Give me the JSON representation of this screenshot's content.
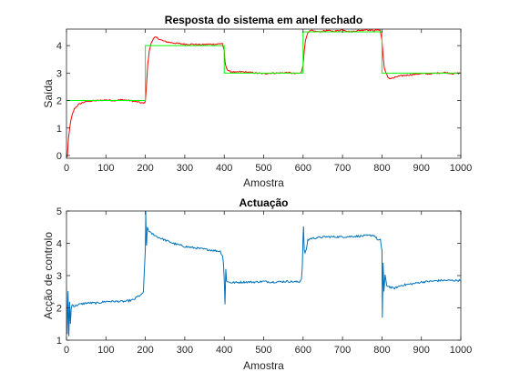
{
  "chart_data": [
    {
      "type": "line",
      "title": "Resposta do sistema em anel fechado",
      "xlabel": "Amostra",
      "ylabel": "Saída",
      "xlim": [
        0,
        1000
      ],
      "ylim": [
        -0.1,
        4.6
      ],
      "xticks": [
        "0",
        "100",
        "200",
        "300",
        "400",
        "500",
        "600",
        "700",
        "800",
        "900",
        "1000"
      ],
      "yticks": [
        "0",
        "1",
        "2",
        "3",
        "4"
      ],
      "grid": false,
      "series": [
        {
          "color": "#ff0000",
          "x": [
            0,
            2,
            5,
            10,
            15,
            20,
            30,
            40,
            50,
            60,
            80,
            100,
            120,
            140,
            160,
            180,
            195,
            200,
            203,
            206,
            210,
            215,
            220,
            225,
            230,
            240,
            250,
            260,
            280,
            300,
            320,
            340,
            360,
            380,
            395,
            400,
            402,
            405,
            410,
            415,
            420,
            430,
            440,
            460,
            480,
            500,
            520,
            540,
            560,
            580,
            595,
            600,
            603,
            606,
            610,
            615,
            620,
            630,
            640,
            660,
            680,
            700,
            720,
            740,
            760,
            780,
            795,
            800,
            803,
            806,
            810,
            815,
            820,
            830,
            840,
            860,
            880,
            900,
            920,
            940,
            960,
            980,
            1000
          ],
          "y": [
            0.0,
            -0.05,
            0.6,
            1.2,
            1.5,
            1.7,
            1.85,
            1.92,
            1.96,
            1.98,
            2.0,
            2.02,
            2.0,
            2.03,
            2.0,
            1.95,
            1.9,
            1.95,
            2.6,
            3.3,
            3.8,
            4.1,
            4.25,
            4.3,
            4.28,
            4.2,
            4.15,
            4.12,
            4.08,
            4.05,
            4.05,
            4.03,
            4.05,
            4.05,
            4.08,
            3.8,
            3.4,
            3.2,
            3.1,
            3.05,
            3.05,
            3.02,
            3.05,
            3.03,
            3.0,
            2.98,
            3.0,
            3.0,
            3.02,
            2.98,
            3.0,
            3.3,
            3.8,
            4.2,
            4.4,
            4.5,
            4.55,
            4.52,
            4.5,
            4.55,
            4.52,
            4.58,
            4.5,
            4.55,
            4.58,
            4.55,
            4.58,
            4.2,
            3.6,
            3.2,
            3.0,
            2.85,
            2.8,
            2.82,
            2.88,
            2.92,
            2.95,
            2.98,
            2.97,
            3.0,
            3.02,
            2.98,
            3.0
          ],
          "noise": 0.025
        },
        {
          "color": "#00ff00",
          "x": [
            0,
            200,
            200,
            400,
            400,
            600,
            600,
            800,
            800,
            1000
          ],
          "y": [
            2,
            2,
            4,
            4,
            3,
            3,
            4.5,
            4.5,
            3,
            3
          ],
          "noise": 0
        }
      ]
    },
    {
      "type": "line",
      "title": "Actuação",
      "xlabel": "Amostra",
      "ylabel": "Acção de controlo",
      "xlim": [
        0,
        1000
      ],
      "ylim": [
        1,
        5
      ],
      "xticks": [
        "0",
        "100",
        "200",
        "300",
        "400",
        "500",
        "600",
        "700",
        "800",
        "900",
        "1000"
      ],
      "yticks": [
        "1",
        "2",
        "3",
        "4",
        "5"
      ],
      "grid": false,
      "series": [
        {
          "color": "#0072bd",
          "x": [
            0,
            2,
            4,
            6,
            8,
            10,
            12,
            15,
            20,
            30,
            50,
            80,
            100,
            150,
            170,
            180,
            190,
            195,
            200,
            201,
            202,
            203,
            205,
            208,
            212,
            215,
            220,
            230,
            250,
            270,
            300,
            330,
            360,
            390,
            396,
            398,
            400,
            402,
            404,
            406,
            410,
            420,
            450,
            480,
            500,
            520,
            560,
            590,
            596,
            598,
            600,
            601,
            603,
            605,
            608,
            612,
            620,
            640,
            660,
            700,
            740,
            780,
            790,
            796,
            798,
            800,
            801,
            803,
            805,
            808,
            812,
            820,
            830,
            850,
            880,
            900,
            950,
            1000
          ],
          "y": [
            2.8,
            1.2,
            2.5,
            1.1,
            2.2,
            1.5,
            2.0,
            2.1,
            2.05,
            2.1,
            2.15,
            2.15,
            2.2,
            2.2,
            2.25,
            2.35,
            2.4,
            2.5,
            3.8,
            5.0,
            4.2,
            3.9,
            4.5,
            4.4,
            4.35,
            4.3,
            4.28,
            4.2,
            4.1,
            4.0,
            3.9,
            3.85,
            3.8,
            3.75,
            3.6,
            3.4,
            2.9,
            2.1,
            3.2,
            2.85,
            2.8,
            2.78,
            2.8,
            2.8,
            2.82,
            2.8,
            2.82,
            2.8,
            2.9,
            3.3,
            4.2,
            4.5,
            3.8,
            3.7,
            3.8,
            4.1,
            4.15,
            4.18,
            4.2,
            4.2,
            4.22,
            4.25,
            4.1,
            4.1,
            3.9,
            3.8,
            1.7,
            3.4,
            2.5,
            3.0,
            2.7,
            2.65,
            2.6,
            2.7,
            2.75,
            2.8,
            2.85,
            2.85
          ],
          "noise": 0.03
        }
      ]
    }
  ]
}
